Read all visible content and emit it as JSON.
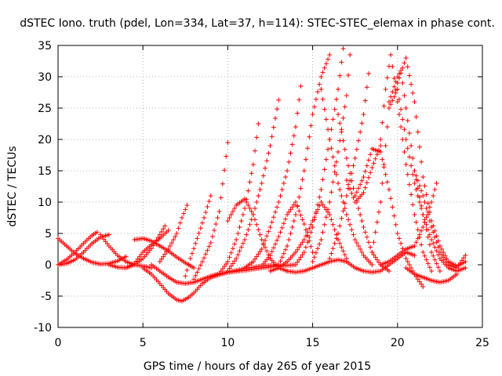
{
  "chart_data": {
    "type": "scatter",
    "title": "dSTEC Iono. truth (pdel, Lon=334, Lat=37, h=114): STEC-STEC_elemax in phase cont.",
    "xlabel": "GPS time / hours of day 265 of year 2015",
    "ylabel": "dSTEC  / TECUs",
    "xlim": [
      0,
      25
    ],
    "ylim": [
      -10,
      35
    ],
    "xticks": [
      0,
      5,
      10,
      15,
      20,
      25
    ],
    "yticks": [
      -10,
      -5,
      0,
      5,
      10,
      15,
      20,
      25,
      30,
      35
    ],
    "grid": true,
    "marker": "+",
    "colors": {
      "series": "#ff0000",
      "grid": "#a0a0a0",
      "axis": "#000000"
    },
    "series": [
      {
        "x": [
          0.0,
          0.5,
          1.0,
          1.5,
          2.0,
          2.3
        ],
        "values": [
          0.0,
          0.8,
          2.0,
          3.4,
          4.7,
          5.2
        ]
      },
      {
        "x": [
          0.0,
          0.5,
          1.0,
          1.5,
          2.0,
          2.5,
          3.0,
          3.5,
          4.0
        ],
        "values": [
          4.2,
          3.0,
          1.8,
          1.0,
          0.4,
          0.1,
          0.2,
          0.6,
          1.3
        ]
      },
      {
        "x": [
          0.0,
          0.5,
          1.0,
          1.5,
          2.0,
          2.5,
          3.0
        ],
        "values": [
          0.0,
          0.2,
          0.8,
          2.0,
          3.4,
          4.4,
          4.8
        ]
      },
      {
        "x": [
          2.5,
          3.0,
          3.5,
          4.0,
          4.5,
          5.0,
          5.5
        ],
        "values": [
          4.8,
          3.0,
          1.5,
          0.5,
          0.0,
          -0.2,
          -0.5
        ]
      },
      {
        "x": [
          3.0,
          3.5,
          4.0,
          4.5,
          5.0,
          5.5,
          6.0,
          6.3
        ],
        "values": [
          0.0,
          -0.4,
          -0.5,
          0.0,
          1.0,
          2.6,
          4.8,
          6.2
        ]
      },
      {
        "x": [
          4.0,
          4.5,
          5.0,
          5.5,
          6.0,
          6.5
        ],
        "values": [
          -0.5,
          0.2,
          2.0,
          3.2,
          4.2,
          5.5
        ]
      },
      {
        "x": [
          4.5,
          5.0,
          5.5,
          6.0,
          6.5,
          7.0,
          7.5,
          8.0
        ],
        "values": [
          4.0,
          4.2,
          3.8,
          3.0,
          2.2,
          1.2,
          0.3,
          -0.5
        ]
      },
      {
        "x": [
          5.0,
          5.5,
          6.0,
          6.5,
          7.0,
          7.3,
          7.7,
          8.0,
          8.5,
          9.0,
          10.0,
          11.0,
          12.0,
          13.0
        ],
        "values": [
          -0.5,
          -1.5,
          -3.0,
          -4.6,
          -5.6,
          -5.8,
          -5.2,
          -4.5,
          -3.0,
          -2.0,
          -1.2,
          -0.6,
          -0.2,
          0.0
        ]
      },
      {
        "x": [
          5.5,
          6.0,
          6.5,
          7.0,
          7.5,
          8.0,
          8.5,
          9.0,
          9.5,
          10.0,
          11.0,
          12.0,
          13.0,
          14.0
        ],
        "values": [
          0.0,
          -1.0,
          -2.0,
          -2.8,
          -3.0,
          -2.8,
          -2.3,
          -1.8,
          -1.4,
          -1.2,
          -0.9,
          -0.5,
          -0.2,
          0.0
        ]
      },
      {
        "x": [
          6.0,
          6.5,
          7.0,
          7.3,
          7.6
        ],
        "values": [
          0.5,
          2.5,
          5.0,
          7.5,
          9.5
        ]
      },
      {
        "x": [
          7.5,
          7.8,
          8.2,
          8.6,
          9.0
        ],
        "values": [
          -1.8,
          1.0,
          4.2,
          7.5,
          11.0
        ]
      },
      {
        "x": [
          8.0,
          8.5,
          9.0,
          9.5,
          10.0
        ],
        "values": [
          -2.3,
          0.5,
          3.5,
          8.5,
          19.5
        ]
      },
      {
        "x": [
          9.0,
          9.5,
          10.0,
          10.5,
          11.0,
          11.5,
          11.8
        ],
        "values": [
          -2.0,
          -1.4,
          0.5,
          4.0,
          9.0,
          16.0,
          22.5
        ]
      },
      {
        "x": [
          10.0,
          10.5,
          11.0,
          11.5,
          12.0,
          12.5,
          13.0
        ],
        "values": [
          -1.0,
          1.0,
          4.0,
          8.0,
          13.0,
          19.0,
          26.3
        ]
      },
      {
        "x": [
          11.0,
          11.5,
          12.0,
          12.5,
          13.0,
          13.5,
          14.0,
          14.3
        ],
        "values": [
          -0.5,
          0.5,
          2.5,
          6.0,
          10.0,
          15.0,
          22.0,
          28.5
        ]
      },
      {
        "x": [
          10.0,
          10.5,
          11.0,
          11.5,
          12.0,
          12.5,
          13.0,
          13.5
        ],
        "values": [
          7.0,
          9.5,
          10.5,
          8.0,
          4.0,
          1.0,
          -0.5,
          -1.0
        ]
      },
      {
        "x": [
          12.0,
          12.5,
          13.0,
          13.5,
          14.0,
          14.5,
          15.0
        ],
        "values": [
          -0.2,
          1.5,
          4.5,
          8.0,
          10.0,
          6.5,
          2.0
        ]
      },
      {
        "x": [
          12.5,
          13.0,
          13.5,
          14.0,
          14.5,
          15.0,
          15.5,
          16.0,
          16.5,
          17.0
        ],
        "values": [
          -1.0,
          -0.5,
          0.5,
          2.0,
          4.0,
          7.0,
          10.0,
          8.0,
          4.0,
          1.0
        ]
      },
      {
        "x": [
          13.0,
          13.5,
          14.0,
          14.5,
          15.0,
          15.5,
          16.0
        ],
        "values": [
          0.0,
          3.0,
          8.0,
          15.0,
          24.0,
          30.0,
          33.5
        ]
      },
      {
        "x": [
          14.0,
          14.5,
          15.0,
          15.5,
          16.0,
          16.5,
          16.8
        ],
        "values": [
          0.0,
          2.0,
          6.0,
          12.0,
          20.0,
          28.0,
          34.5
        ]
      },
      {
        "x": [
          15.0,
          15.5,
          16.0,
          16.5,
          17.0,
          17.2
        ],
        "values": [
          0.5,
          4.0,
          10.0,
          18.0,
          27.0,
          33.5
        ]
      },
      {
        "x": [
          15.5,
          16.0,
          16.5,
          17.0,
          17.5,
          18.0,
          18.5
        ],
        "values": [
          28.0,
          20.0,
          13.0,
          8.0,
          4.0,
          1.5,
          0.0
        ]
      },
      {
        "x": [
          16.0,
          16.5,
          17.0,
          17.5,
          18.0,
          18.3
        ],
        "values": [
          1.0,
          5.0,
          11.0,
          17.0,
          24.0,
          30.5
        ]
      },
      {
        "x": [
          16.5,
          17.0,
          17.5,
          18.0,
          18.5,
          19.0,
          19.5
        ],
        "values": [
          24.0,
          17.0,
          11.0,
          6.0,
          2.0,
          0.0,
          -1.0
        ]
      },
      {
        "x": [
          17.0,
          17.5,
          18.0,
          18.5,
          19.0
        ],
        "values": [
          13.5,
          10.0,
          11.5,
          15.5,
          19.0
        ]
      },
      {
        "x": [
          17.5,
          18.0,
          18.5,
          19.0,
          19.5,
          20.0,
          20.5,
          21.0,
          21.5
        ],
        "values": [
          11.0,
          14.0,
          18.5,
          18.0,
          12.0,
          5.0,
          1.0,
          -1.5,
          -3.5
        ]
      },
      {
        "x": [
          18.5,
          19.0,
          19.5,
          20.0,
          20.5,
          21.0,
          21.5,
          22.0,
          22.5,
          23.0,
          23.5,
          24.0
        ],
        "values": [
          2.0,
          10.0,
          25.0,
          28.0,
          20.0,
          13.0,
          8.0,
          4.0,
          1.0,
          -0.5,
          -1.0,
          -0.5
        ]
      },
      {
        "x": [
          19.0,
          19.3,
          19.6,
          20.0,
          20.5,
          21.0,
          21.5,
          22.0
        ],
        "values": [
          20.0,
          28.0,
          33.5,
          26.0,
          16.0,
          8.0,
          2.0,
          -1.0
        ]
      },
      {
        "x": [
          19.5,
          20.0,
          20.2,
          20.5,
          21.0,
          21.5,
          22.0,
          22.5
        ],
        "values": [
          26.0,
          30.0,
          31.0,
          25.0,
          15.0,
          8.0,
          2.0,
          -1.0
        ]
      },
      {
        "x": [
          20.0,
          20.5,
          21.0,
          21.5,
          22.0,
          22.5,
          23.0,
          23.5,
          24.0
        ],
        "values": [
          29.0,
          33.0,
          26.0,
          14.0,
          7.0,
          3.0,
          0.5,
          -0.2,
          0.5
        ]
      },
      {
        "x": [
          21.0,
          21.5,
          22.0,
          22.5,
          23.0,
          23.5,
          24.0
        ],
        "values": [
          15.0,
          11.0,
          6.0,
          2.0,
          0.0,
          -0.5,
          1.5
        ]
      },
      {
        "x": [
          20.5,
          21.0,
          21.5,
          22.0,
          22.5,
          23.0,
          23.5
        ],
        "values": [
          -0.5,
          -1.5,
          -2.0,
          -2.5,
          -2.8,
          -2.5,
          -1.5
        ]
      },
      {
        "x": [
          19.0,
          19.5,
          20.0,
          20.5,
          21.0,
          21.5,
          22.0,
          22.3
        ],
        "values": [
          0.0,
          0.5,
          1.5,
          2.5,
          3.0,
          6.0,
          10.0,
          13.0
        ]
      },
      {
        "x": [
          17.0,
          17.5,
          18.0,
          18.5,
          19.0,
          19.5,
          20.0,
          20.5,
          21.0
        ],
        "values": [
          0.5,
          -0.5,
          -1.0,
          -1.2,
          -1.0,
          0.0,
          1.0,
          2.0,
          1.5
        ]
      },
      {
        "x": [
          13.5,
          14.0,
          14.5,
          15.0,
          15.5,
          16.0,
          16.5,
          17.0
        ],
        "values": [
          -1.0,
          -1.2,
          -1.0,
          -0.5,
          0.0,
          0.5,
          0.8,
          0.5
        ]
      }
    ]
  }
}
